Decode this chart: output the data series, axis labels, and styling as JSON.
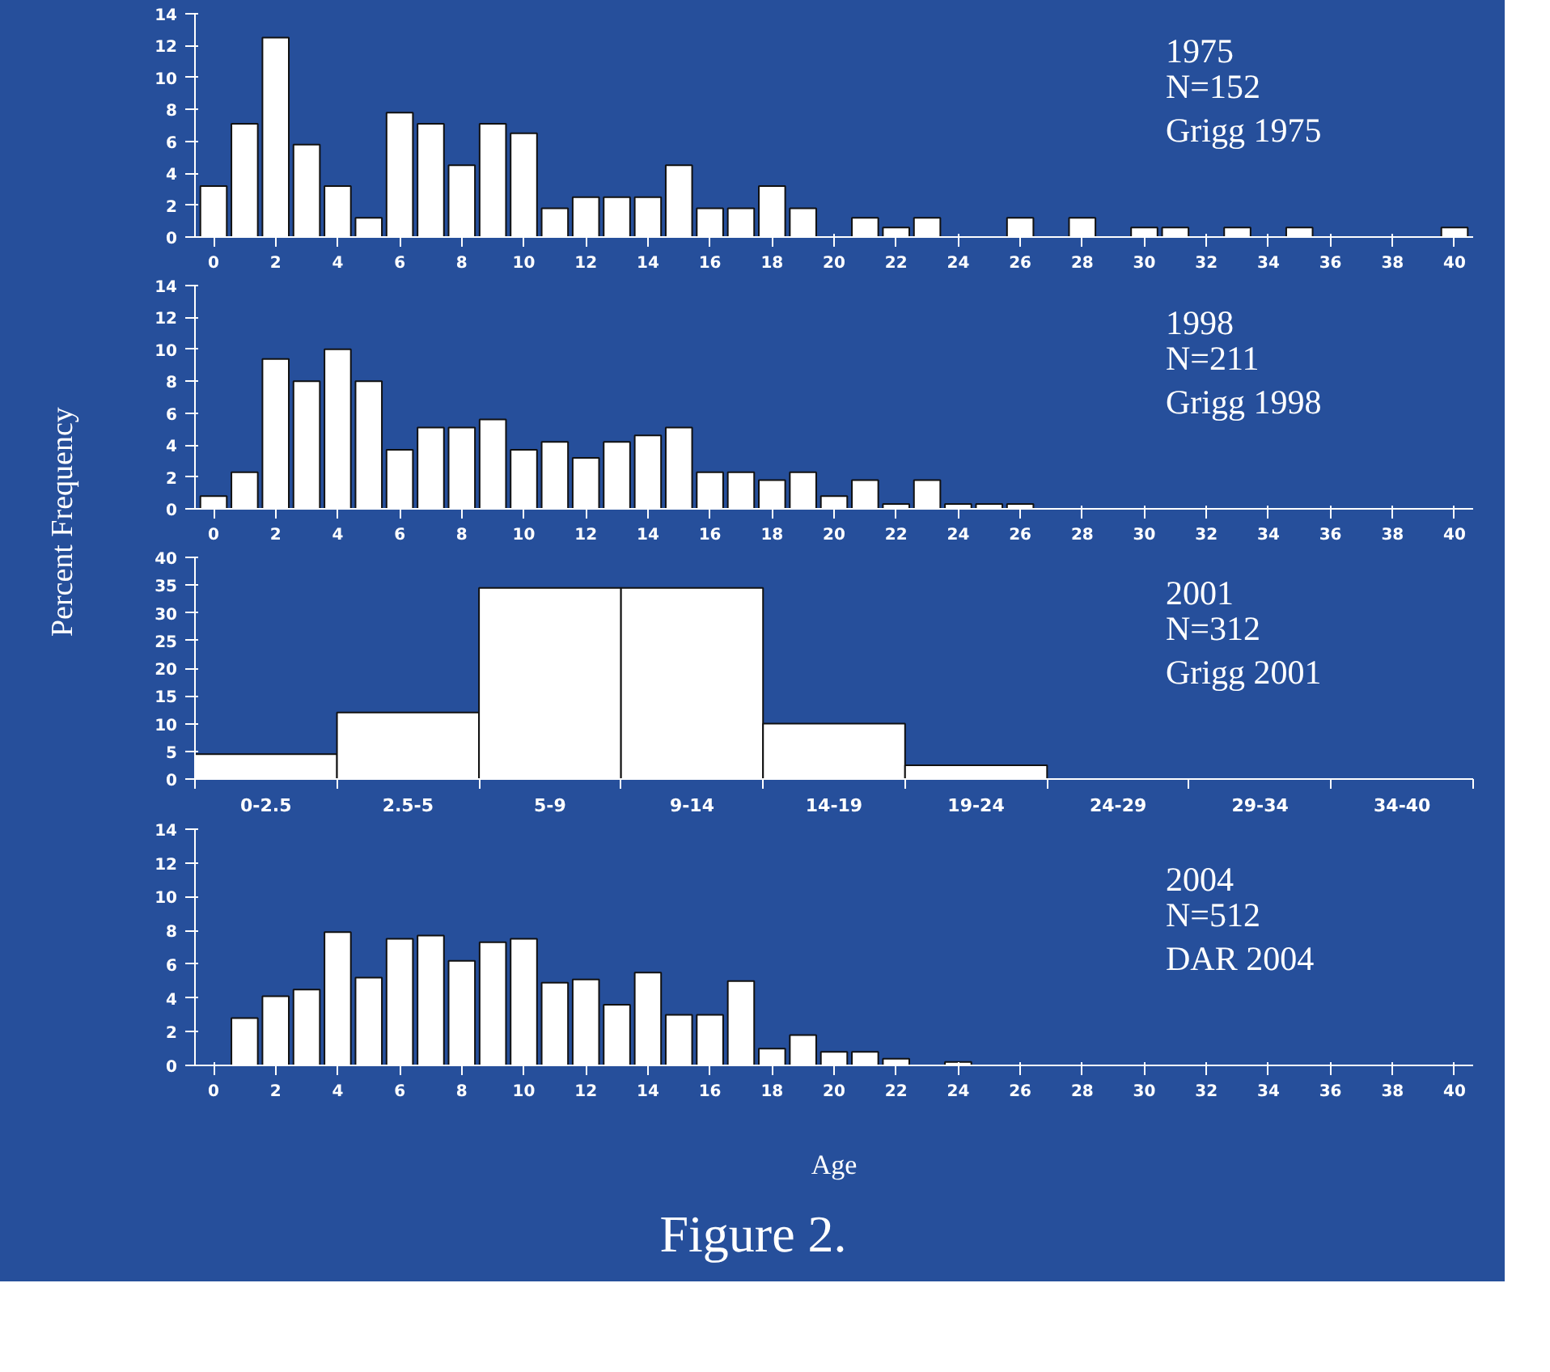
{
  "chart_data": [
    {
      "type": "bar",
      "x": [
        0,
        1,
        2,
        3,
        4,
        5,
        6,
        7,
        8,
        9,
        10,
        11,
        12,
        13,
        14,
        15,
        16,
        17,
        18,
        19,
        20,
        21,
        22,
        23,
        24,
        25,
        26,
        27,
        28,
        29,
        30,
        31,
        32,
        33,
        34,
        35,
        36,
        37,
        38,
        39,
        40
      ],
      "values": [
        3.2,
        7.1,
        12.5,
        5.8,
        3.2,
        1.2,
        7.8,
        7.1,
        4.5,
        7.1,
        6.5,
        1.8,
        2.5,
        2.5,
        2.5,
        4.5,
        1.8,
        1.8,
        3.2,
        1.8,
        null,
        1.2,
        0.6,
        1.2,
        null,
        null,
        1.2,
        null,
        1.2,
        null,
        0.6,
        0.6,
        null,
        0.6,
        null,
        0.6,
        null,
        null,
        null,
        null,
        0.6
      ],
      "color": "#ffffff",
      "xlim": [
        -0.6,
        40.6
      ],
      "xticks": [
        0,
        2,
        4,
        6,
        8,
        10,
        12,
        14,
        16,
        18,
        20,
        22,
        24,
        26,
        28,
        30,
        32,
        34,
        36,
        38,
        40
      ],
      "ylim": [
        0,
        14
      ],
      "yticks": [
        0,
        2,
        4,
        6,
        8,
        10,
        12,
        14
      ],
      "annotations": [
        "1975",
        "N=152",
        "Grigg 1975"
      ]
    },
    {
      "type": "bar",
      "x": [
        0,
        1,
        2,
        3,
        4,
        5,
        6,
        7,
        8,
        9,
        10,
        11,
        12,
        13,
        14,
        15,
        16,
        17,
        18,
        19,
        20,
        21,
        22,
        23,
        24,
        25,
        26
      ],
      "values": [
        0.8,
        2.3,
        9.4,
        8,
        10,
        8,
        3.7,
        5.1,
        5.1,
        5.6,
        3.7,
        4.2,
        3.2,
        4.2,
        4.6,
        5.1,
        2.3,
        2.3,
        1.8,
        2.3,
        0.8,
        1.8,
        0.3,
        1.8,
        0.3,
        0.3,
        0.3
      ],
      "color": "#ffffff",
      "xlim": [
        -0.6,
        40.6
      ],
      "xticks": [
        0,
        2,
        4,
        6,
        8,
        10,
        12,
        14,
        16,
        18,
        20,
        22,
        24,
        26,
        28,
        30,
        32,
        34,
        36,
        38,
        40
      ],
      "ylim": [
        0,
        14
      ],
      "yticks": [
        0,
        2,
        4,
        6,
        8,
        10,
        12,
        14
      ],
      "ylabel": "Percent Frequency",
      "annotations": [
        "1998",
        "N=211",
        "Grigg 1998"
      ]
    },
    {
      "type": "bar",
      "categories": [
        "0-2.5",
        "2.5-5",
        "5-9",
        "9-14",
        "14-19",
        "19-24",
        "24-29",
        "29-34",
        "34-40"
      ],
      "values": [
        4.5,
        12,
        34.5,
        34.5,
        10,
        2.5,
        null,
        null,
        null
      ],
      "color": "#ffffff",
      "ylim": [
        0,
        40
      ],
      "yticks": [
        0,
        5,
        10,
        15,
        20,
        25,
        30,
        35,
        40
      ],
      "annotations": [
        "2001",
        "N=312",
        "Grigg 2001"
      ]
    },
    {
      "type": "bar",
      "x": [
        1,
        2,
        3,
        4,
        5,
        6,
        7,
        8,
        9,
        10,
        11,
        12,
        13,
        14,
        15,
        16,
        17,
        18,
        19,
        20,
        21,
        22,
        23,
        24
      ],
      "values": [
        2.8,
        4.1,
        4.5,
        7.9,
        5.2,
        7.5,
        7.7,
        6.2,
        7.3,
        7.5,
        4.9,
        5.1,
        3.6,
        5.5,
        3,
        3,
        5,
        1,
        1.8,
        0.8,
        0.8,
        0.4,
        null,
        0.2
      ],
      "color": "#ffffff",
      "xlim": [
        -0.6,
        40.6
      ],
      "xticks": [
        0,
        2,
        4,
        6,
        8,
        10,
        12,
        14,
        16,
        18,
        20,
        22,
        24,
        26,
        28,
        30,
        32,
        34,
        36,
        38,
        40
      ],
      "ylim": [
        0,
        14
      ],
      "yticks": [
        0,
        2,
        4,
        6,
        8,
        10,
        12,
        14
      ],
      "xlabel": "Age",
      "annotations": [
        "2004",
        "N=512",
        "DAR 2004",
        "Figure 2."
      ]
    }
  ]
}
